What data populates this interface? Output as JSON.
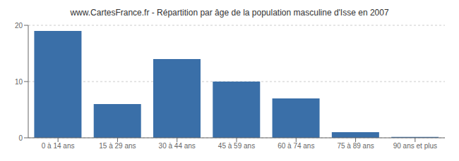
{
  "chart_data": {
    "type": "bar",
    "title": "www.CartesFrance.fr - Répartition par âge de la population masculine d'Isse en 2007",
    "categories": [
      "0 à 14 ans",
      "15 à 29 ans",
      "30 à 44 ans",
      "45 à 59 ans",
      "60 à 74 ans",
      "75 à 89 ans",
      "90 ans et plus"
    ],
    "values": [
      19,
      6,
      14,
      10,
      7,
      1,
      0.15
    ],
    "color": "#3a6fa8",
    "ylim": [
      0,
      20
    ],
    "yticks": [
      0,
      10,
      20
    ],
    "grid": true
  }
}
